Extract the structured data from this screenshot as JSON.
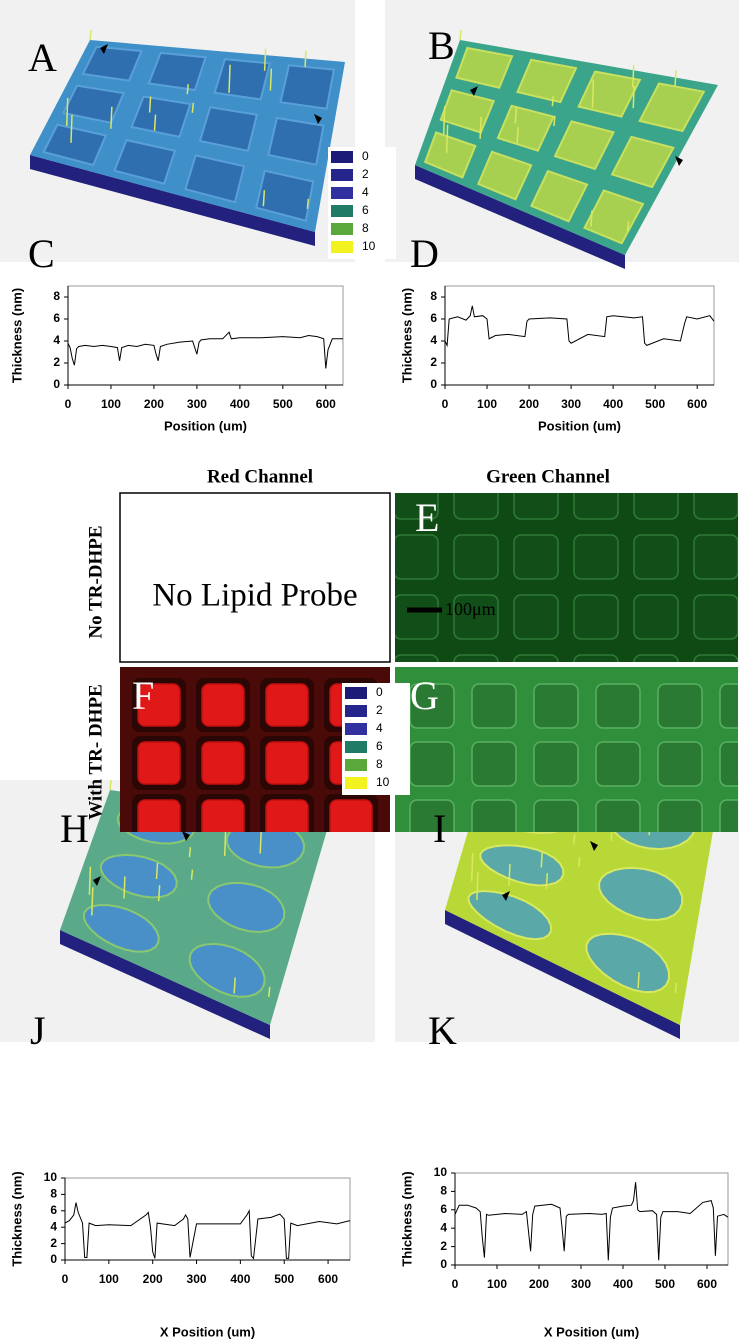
{
  "panel_labels": [
    "A",
    "B",
    "C",
    "D",
    "E",
    "F",
    "G",
    "H",
    "I",
    "J",
    "K"
  ],
  "legend": [
    0,
    2,
    4,
    6,
    8,
    10
  ],
  "legend_colors": [
    "#1c1c78",
    "#25258c",
    "#30309e",
    "#1f7a66",
    "#5aa83c",
    "#f2f220"
  ],
  "column_headers": [
    "Red Channel",
    "Green Channel"
  ],
  "row_headers": [
    "No TR-DHPE",
    "With TR- DHPE"
  ],
  "empty_panel_text": "No Lipid Probe",
  "scale_bar": "100μm",
  "chart_data": [
    {
      "type": "line",
      "color": "#000000",
      "x": [
        0,
        5,
        10,
        15,
        20,
        25,
        40,
        60,
        80,
        100,
        115,
        120,
        125,
        140,
        160,
        180,
        200,
        205,
        210,
        215,
        230,
        260,
        290,
        300,
        305,
        310,
        330,
        360,
        375,
        380,
        400,
        450,
        500,
        540,
        560,
        580,
        595,
        600,
        605,
        615,
        640
      ],
      "values": [
        3.8,
        3.4,
        2.4,
        1.8,
        3.3,
        3.5,
        3.6,
        3.5,
        3.6,
        3.5,
        3.4,
        2.2,
        3.4,
        3.6,
        3.5,
        3.7,
        3.6,
        2.8,
        2.2,
        3.5,
        3.7,
        3.9,
        4.0,
        2.8,
        3.9,
        4.1,
        4.2,
        4.2,
        4.8,
        4.2,
        4.3,
        4.3,
        4.4,
        4.3,
        4.5,
        4.4,
        4.2,
        1.5,
        3.2,
        4.2,
        4.2
      ],
      "xlim": [
        0,
        640
      ],
      "ylim": [
        0,
        9
      ],
      "xticks": [
        0,
        100,
        200,
        300,
        400,
        500,
        600
      ],
      "yticks": [
        0,
        2,
        4,
        6,
        8
      ],
      "x_label": "Position (um)",
      "y_label": "Thickness (nm)"
    },
    {
      "type": "line",
      "color": "#000000",
      "x": [
        0,
        5,
        10,
        30,
        50,
        60,
        65,
        70,
        90,
        100,
        105,
        120,
        150,
        190,
        195,
        200,
        250,
        290,
        295,
        300,
        340,
        380,
        385,
        400,
        450,
        470,
        475,
        480,
        520,
        560,
        570,
        575,
        600,
        630,
        640
      ],
      "values": [
        4.0,
        3.6,
        6.0,
        6.2,
        5.9,
        6.3,
        7.2,
        6.2,
        6.3,
        6.0,
        4.2,
        4.5,
        4.6,
        4.4,
        5.8,
        6.0,
        6.1,
        6.0,
        4.0,
        3.8,
        4.6,
        4.4,
        6.2,
        6.3,
        6.1,
        6.2,
        3.8,
        3.6,
        4.2,
        4.0,
        5.6,
        6.2,
        6.0,
        6.3,
        5.8
      ],
      "xlim": [
        0,
        640
      ],
      "ylim": [
        0,
        9
      ],
      "xticks": [
        0,
        100,
        200,
        300,
        400,
        500,
        600
      ],
      "yticks": [
        0,
        2,
        4,
        6,
        8
      ],
      "x_label": "Position (um)",
      "y_label": "Thickness (nm)"
    },
    {
      "type": "line",
      "color": "#000000",
      "x": [
        0,
        10,
        20,
        25,
        30,
        40,
        45,
        50,
        55,
        70,
        100,
        150,
        185,
        190,
        195,
        200,
        205,
        210,
        250,
        270,
        275,
        280,
        285,
        300,
        350,
        400,
        415,
        420,
        425,
        430,
        440,
        470,
        490,
        500,
        505,
        510,
        515,
        530,
        580,
        620,
        650
      ],
      "values": [
        4.5,
        4.8,
        5.5,
        7.0,
        5.8,
        4.5,
        0.3,
        0.3,
        4.5,
        4.2,
        4.3,
        4.2,
        5.5,
        5.8,
        4.0,
        1.0,
        0.2,
        4.5,
        4.2,
        5.0,
        5.5,
        5.0,
        0.3,
        4.4,
        4.4,
        4.4,
        5.5,
        6.0,
        0.5,
        0.2,
        5.0,
        5.2,
        5.6,
        5.0,
        0.2,
        0.2,
        4.5,
        4.2,
        4.7,
        4.4,
        4.8
      ],
      "xlim": [
        0,
        650
      ],
      "ylim": [
        0,
        10
      ],
      "xticks": [
        0,
        100,
        200,
        300,
        400,
        500,
        600
      ],
      "yticks": [
        0,
        2,
        4,
        6,
        8,
        10
      ],
      "x_label": "X Position (um)",
      "y_label": "Thickness (nm)"
    },
    {
      "type": "line",
      "color": "#000000",
      "x": [
        0,
        10,
        30,
        50,
        60,
        65,
        70,
        75,
        80,
        120,
        160,
        170,
        180,
        185,
        190,
        230,
        250,
        255,
        260,
        265,
        270,
        320,
        350,
        360,
        365,
        370,
        375,
        400,
        420,
        425,
        430,
        435,
        440,
        470,
        480,
        485,
        490,
        495,
        530,
        560,
        590,
        610,
        615,
        620,
        625,
        640,
        650
      ],
      "values": [
        5.5,
        6.5,
        6.5,
        6.2,
        5.8,
        3.0,
        0.8,
        5.5,
        5.4,
        5.6,
        5.5,
        5.8,
        1.5,
        5.5,
        6.4,
        6.6,
        6.2,
        4.0,
        1.5,
        5.3,
        5.5,
        5.6,
        5.5,
        5.6,
        0.5,
        5.2,
        6.2,
        6.4,
        6.5,
        7.0,
        9.0,
        6.0,
        5.8,
        5.9,
        5.5,
        0.5,
        5.2,
        5.8,
        5.8,
        5.6,
        6.8,
        7.0,
        6.2,
        1.0,
        5.3,
        5.5,
        5.2
      ],
      "xlim": [
        0,
        650
      ],
      "ylim": [
        0,
        10
      ],
      "xticks": [
        0,
        100,
        200,
        300,
        400,
        500,
        600
      ],
      "yticks": [
        0,
        2,
        4,
        6,
        8,
        10
      ],
      "x_label": "X Position (um)",
      "y_label": "Thickness (nm)"
    }
  ]
}
